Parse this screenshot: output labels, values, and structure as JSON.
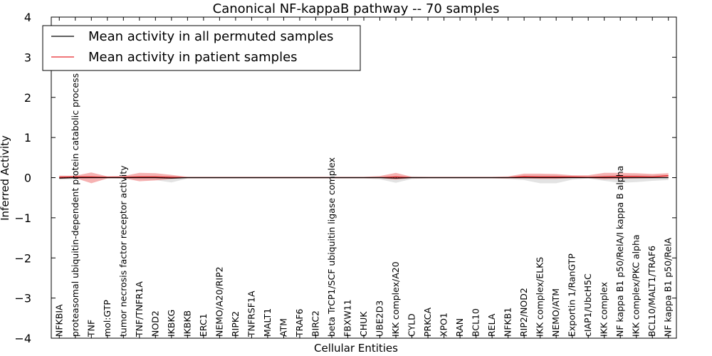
{
  "chart_data": {
    "type": "line",
    "title": "Canonical NF-kappaB pathway -- 70 samples",
    "xlabel": "Cellular Entities",
    "ylabel": "Inferred Activity",
    "ylim": [
      -4,
      4
    ],
    "yticks": [
      4,
      3,
      2,
      1,
      0,
      -1,
      -2,
      -3,
      -4
    ],
    "ytick_labels": [
      "4",
      "3",
      "2",
      "1",
      "0",
      "−1",
      "−2",
      "−3",
      "−4"
    ],
    "legend_position": "upper-left",
    "categories": [
      "NFKBIA",
      "proteasomal ubiquitin-dependent protein catabolic process",
      "TNF",
      "mol:GTP",
      "tumor necrosis factor receptor activity",
      "TNF/TNFR1A",
      "NOD2",
      "IKBKG",
      "IKBKB",
      "ERC1",
      "NEMO/A20/RIP2",
      "RIPK2",
      "TNFRSF1A",
      "MALT1",
      "ATM",
      "TRAF6",
      "BIRC2",
      "beta TrCP1/SCF ubiquitin ligase complex",
      "FBXW11",
      "CHUK",
      "UBE2D3",
      "IKK complex/A20",
      "CYLD",
      "PRKCA",
      "XPO1",
      "RAN",
      "BCL10",
      "RELA",
      "NFKB1",
      "RIP2/NOD2",
      "IKK complex/ELKS",
      "NEMO/ATM",
      "Exportin 1/RanGTP",
      "cIAP1/UbcH5C",
      "IKK complex",
      "NF kappa B1 p50/RelA/I kappa B alpha",
      "IKK complex/PKC alpha",
      "BCL10/MALT1/TRAF6",
      "NF kappa B1 p50/RelA"
    ],
    "series": [
      {
        "name": "Mean activity in all permuted samples",
        "color": "#000000",
        "values": [
          -0.01,
          0,
          0,
          0,
          0,
          0,
          0,
          -0.01,
          0,
          0,
          0,
          0,
          0,
          0,
          0,
          0,
          0,
          0,
          0,
          0,
          0,
          -0.01,
          0,
          0,
          0,
          0,
          0,
          0,
          0,
          0,
          0,
          0,
          0,
          0,
          0,
          0,
          0,
          0,
          0
        ],
        "band_low": [
          -0.05,
          -0.04,
          -0.02,
          -0.01,
          -0.03,
          -0.05,
          -0.06,
          -0.12,
          -0.02,
          -0.02,
          -0.02,
          -0.02,
          -0.02,
          -0.02,
          -0.02,
          -0.02,
          -0.02,
          -0.02,
          -0.02,
          -0.02,
          -0.04,
          -0.13,
          -0.03,
          -0.02,
          -0.02,
          -0.02,
          -0.02,
          -0.02,
          -0.03,
          -0.06,
          -0.14,
          -0.14,
          -0.05,
          -0.02,
          -0.08,
          -0.13,
          -0.11,
          -0.08,
          -0.06
        ],
        "band_high": [
          0.05,
          0.04,
          0.03,
          0.02,
          0.03,
          0.04,
          0.05,
          0.04,
          0.02,
          0.02,
          0.02,
          0.02,
          0.02,
          0.02,
          0.02,
          0.02,
          0.02,
          0.02,
          0.02,
          0.02,
          0.03,
          0.04,
          0.03,
          0.02,
          0.02,
          0.02,
          0.02,
          0.02,
          0.02,
          0.04,
          0.06,
          0.06,
          0.03,
          0.03,
          0.06,
          0.07,
          0.07,
          0.06,
          0.06
        ],
        "band_color": "#cccccc"
      },
      {
        "name": "Mean activity in patient samples",
        "color": "#e8262a",
        "values": [
          0.01,
          0.02,
          0.02,
          0.01,
          0.01,
          0.02,
          0.02,
          0.01,
          0,
          0,
          0,
          0,
          0,
          0,
          0,
          0,
          0,
          0,
          0,
          0,
          0,
          0.02,
          0,
          0,
          0,
          0,
          0,
          0,
          0,
          0.03,
          0.02,
          0.02,
          0.02,
          0.01,
          0.02,
          0.03,
          0.03,
          0.02,
          0.05
        ],
        "band_low": [
          -0.03,
          -0.01,
          -0.14,
          -0.02,
          -0.01,
          -0.09,
          -0.07,
          -0.03,
          -0.01,
          -0.01,
          -0.01,
          -0.01,
          -0.01,
          -0.01,
          -0.01,
          -0.01,
          -0.01,
          -0.01,
          -0.01,
          -0.01,
          -0.01,
          -0.05,
          -0.01,
          -0.01,
          -0.01,
          -0.01,
          -0.01,
          -0.01,
          -0.02,
          -0.02,
          -0.03,
          -0.03,
          -0.01,
          -0.01,
          -0.04,
          -0.03,
          -0.02,
          -0.01,
          0.01
        ],
        "band_high": [
          0.05,
          0.05,
          0.13,
          0.03,
          0.04,
          0.12,
          0.11,
          0.07,
          0.02,
          0.02,
          0.02,
          0.02,
          0.02,
          0.02,
          0.02,
          0.02,
          0.02,
          0.02,
          0.02,
          0.02,
          0.04,
          0.12,
          0.02,
          0.02,
          0.02,
          0.02,
          0.02,
          0.02,
          0.03,
          0.1,
          0.1,
          0.09,
          0.06,
          0.06,
          0.12,
          0.12,
          0.11,
          0.09,
          0.11
        ],
        "band_color": "#f07f7f"
      }
    ],
    "reference_line": {
      "y": 0,
      "style": "dotted"
    }
  }
}
